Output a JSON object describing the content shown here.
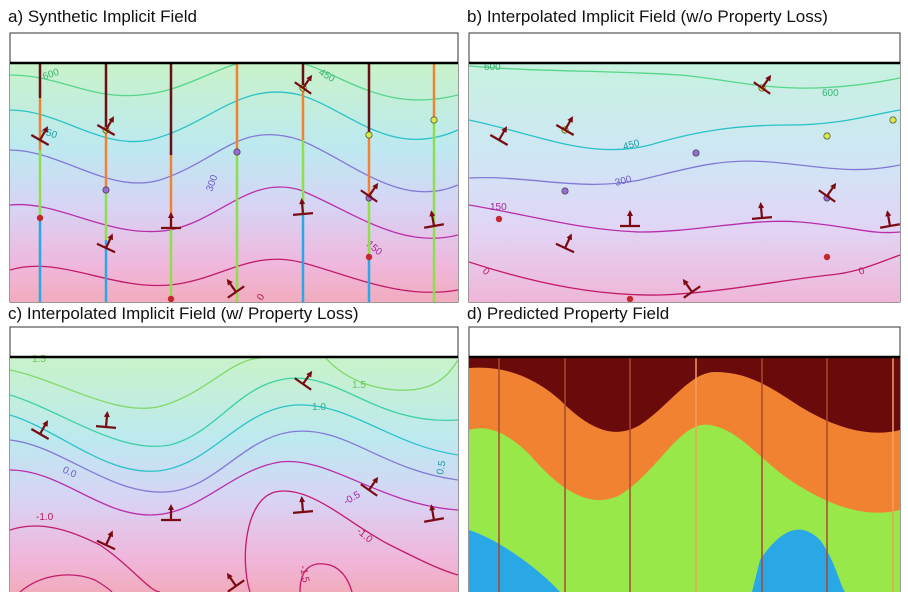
{
  "figure": {
    "panels": [
      {
        "id": "a",
        "title": "a) Synthetic Implicit Field"
      },
      {
        "id": "b",
        "title": "b) Interpolated Implicit Field (w/o Property Loss)"
      },
      {
        "id": "c",
        "title": "c) Interpolated Implicit Field (w/ Property Loss)"
      },
      {
        "id": "d",
        "title": "d) Predicted Property Field"
      }
    ],
    "contour_labels": {
      "a": [
        "600",
        "450",
        "300",
        "150",
        "0",
        "450"
      ],
      "b": [
        "600",
        "600",
        "450",
        "300",
        "150",
        "0",
        "0"
      ],
      "c": [
        "1.5",
        "1.5",
        "1.0",
        "0.5",
        "0.0",
        "-0.5",
        "-1.0",
        "-1.0",
        "-1.5",
        "0.5"
      ]
    },
    "colors": {
      "dip_symbol": "#7a0a12",
      "well_dark": "#6b0f15",
      "well_orange": "#f08232",
      "well_green": "#8ee04a",
      "well_blue": "#2aa8e6",
      "field_top": "#c8f2cc",
      "field_bottom": "#f0a7c8",
      "property_dark": "#6b0a0a",
      "property_orange": "#f08232",
      "property_green": "#98e84a",
      "property_blue": "#2aa8e6"
    }
  }
}
